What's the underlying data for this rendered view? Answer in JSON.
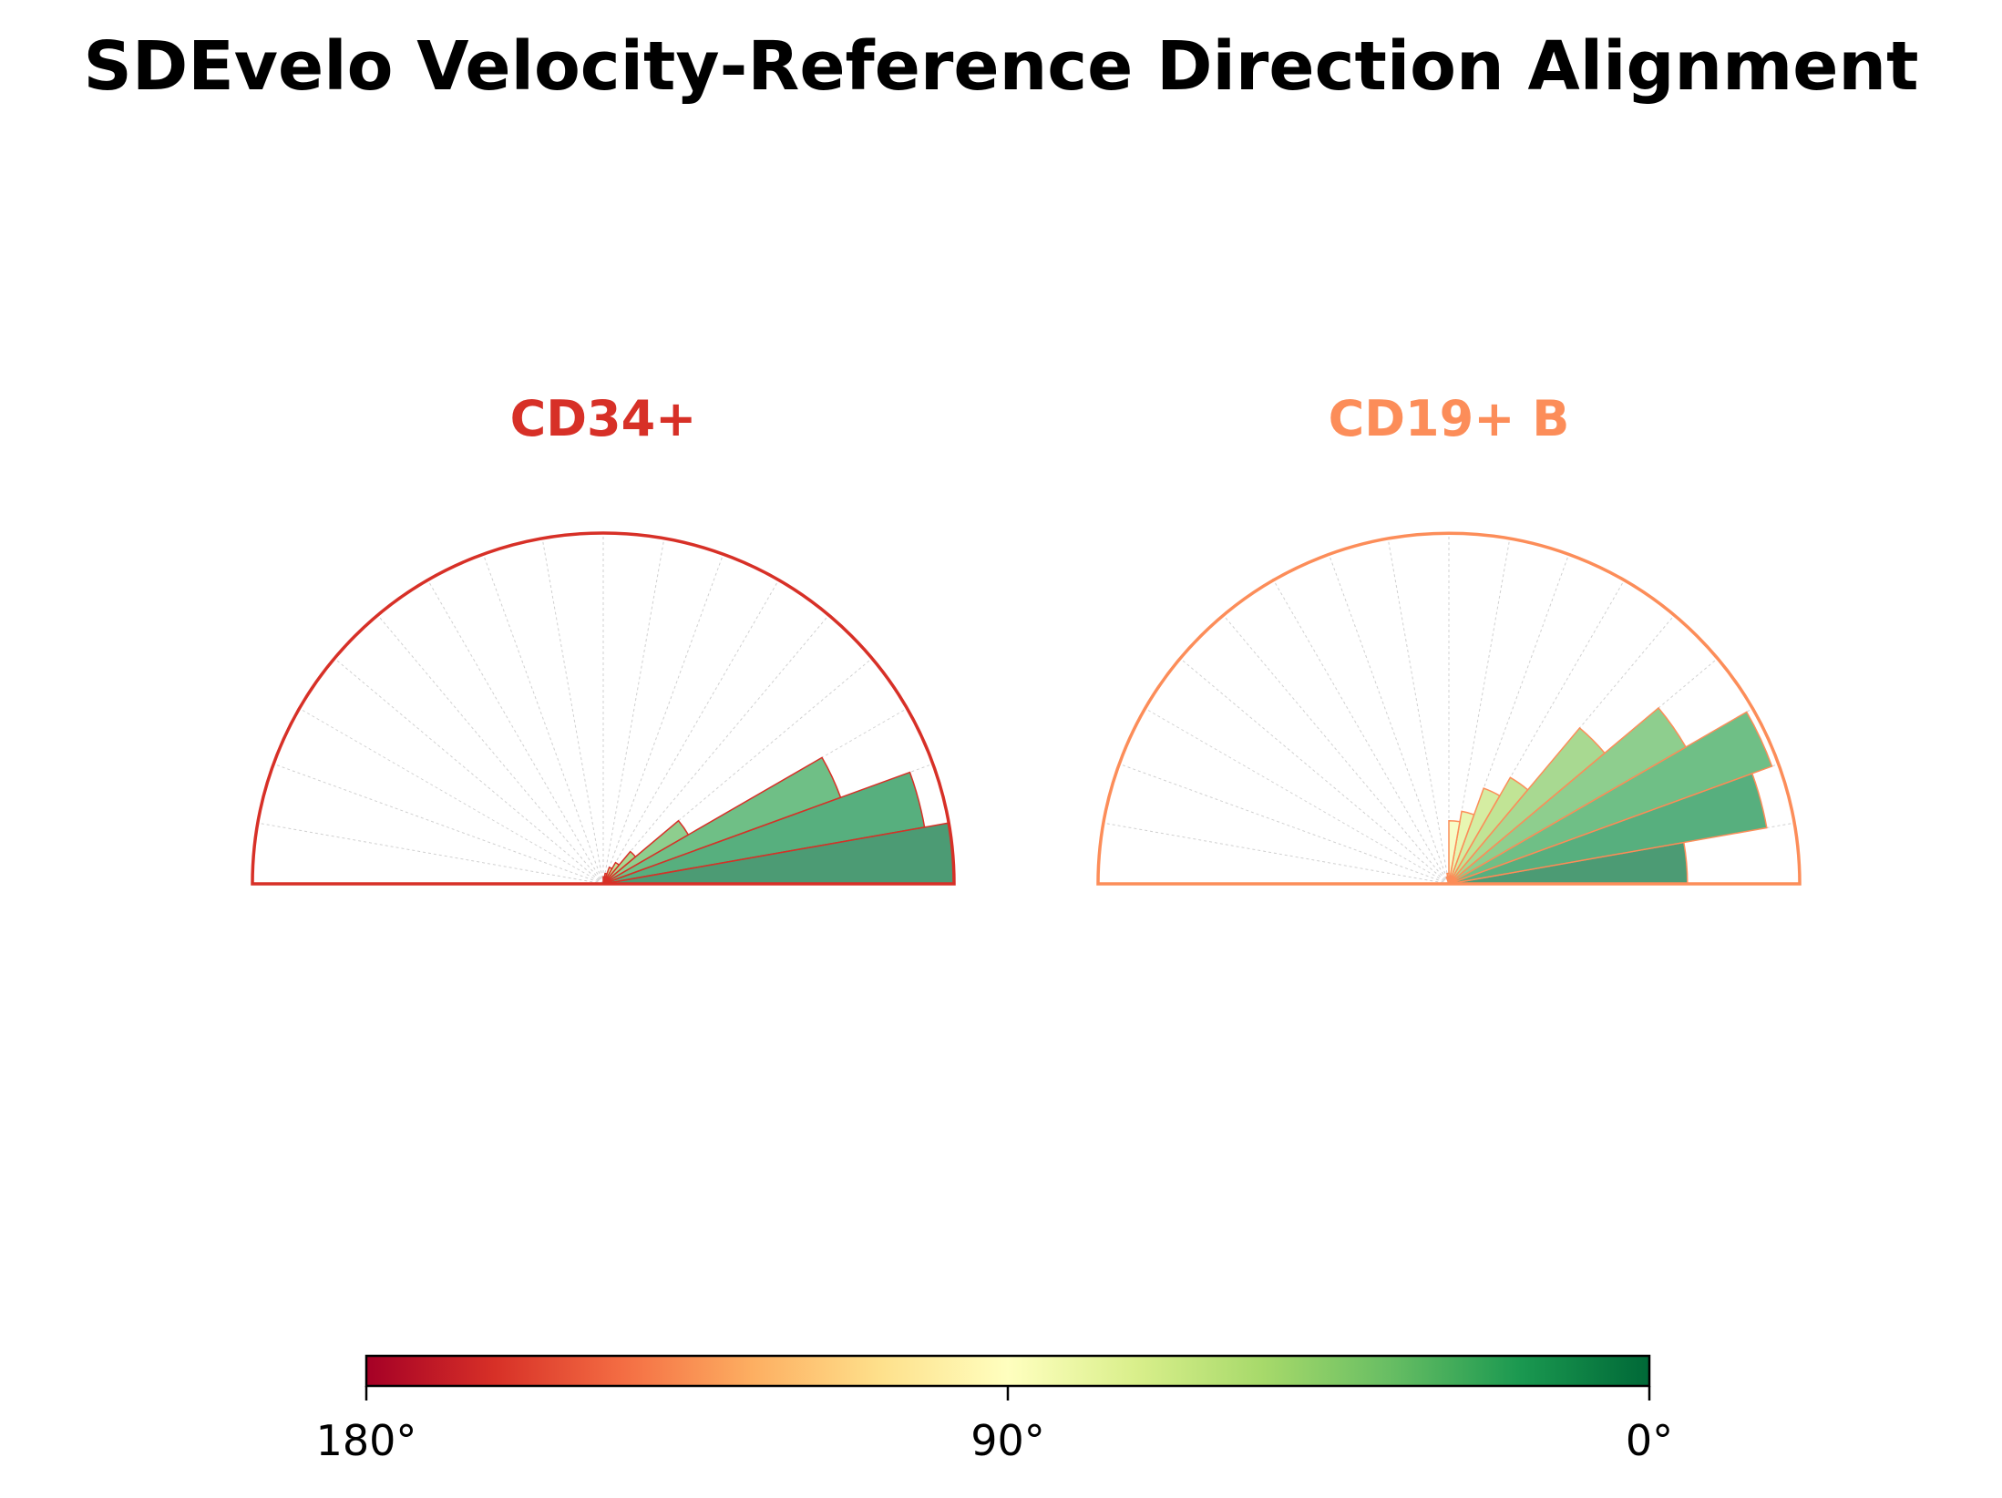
{
  "title": "SDEvelo Velocity-Reference Direction Alignment",
  "chart_data": {
    "type": "polar-histogram",
    "angle_unit": "degrees",
    "bin_width_deg": 10,
    "radial_range": [
      0,
      1
    ],
    "panels": [
      {
        "name": "CD34+",
        "edge_color": "#d73027",
        "bin_centers_deg": [
          5,
          15,
          25,
          35,
          45,
          55,
          65,
          75,
          85,
          95,
          105,
          115,
          125,
          135,
          145,
          155,
          165,
          175
        ],
        "values": [
          1.0,
          0.93,
          0.72,
          0.28,
          0.12,
          0.07,
          0.05,
          0.03,
          0.02,
          0,
          0,
          0,
          0,
          0,
          0,
          0,
          0,
          0
        ]
      },
      {
        "name": "CD19+ B",
        "edge_color": "#fc8d59",
        "bin_centers_deg": [
          5,
          15,
          25,
          35,
          45,
          55,
          65,
          75,
          85,
          95,
          105,
          115,
          125,
          135,
          145,
          155,
          165,
          175
        ],
        "values": [
          0.68,
          0.92,
          0.98,
          0.78,
          0.58,
          0.35,
          0.29,
          0.21,
          0.18,
          0.03,
          0.02,
          0,
          0,
          0,
          0,
          0,
          0,
          0
        ]
      }
    ],
    "colorbar": {
      "colormap": "RdYlGn",
      "range_deg": [
        180,
        0
      ],
      "ticks": [
        "180°",
        "90°",
        "0°"
      ],
      "stops": [
        "#a50026",
        "#d73027",
        "#f46d43",
        "#fdae61",
        "#fee08b",
        "#ffffbf",
        "#d9ef8b",
        "#a6d96a",
        "#66bd63",
        "#1a9850",
        "#006837"
      ]
    }
  }
}
